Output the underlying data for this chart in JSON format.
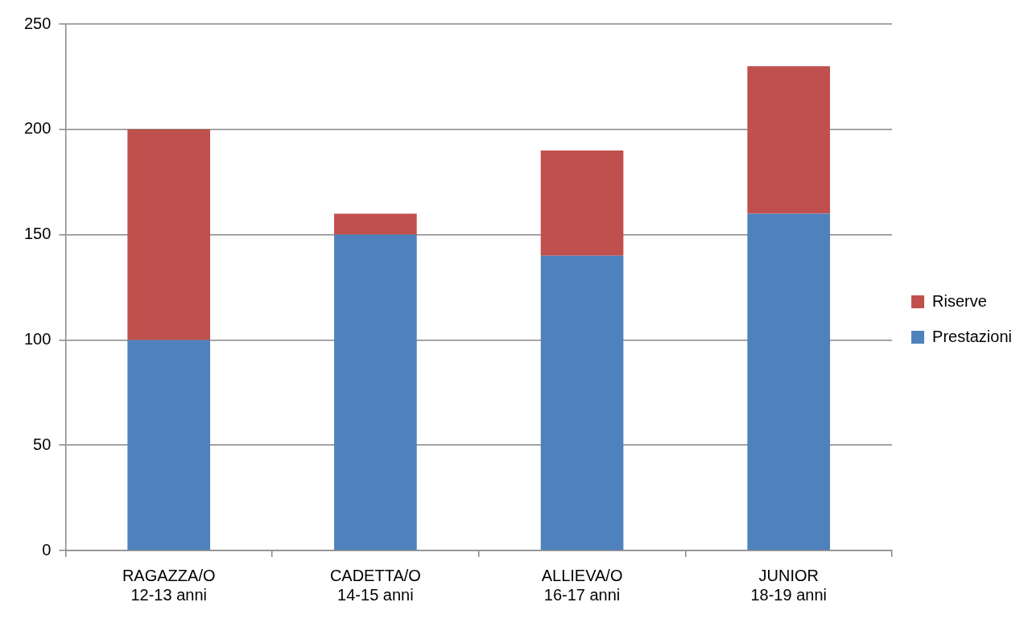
{
  "chart_data": {
    "type": "bar",
    "stacked": true,
    "categories": [
      "RAGAZZA/O\n12-13 anni",
      "CADETTA/O\n14-15 anni",
      "ALLIEVA/O\n16-17 anni",
      "JUNIOR\n18-19 anni"
    ],
    "series": [
      {
        "name": "Prestazioni",
        "color": "#4f81bd",
        "values": [
          100,
          150,
          140,
          160
        ]
      },
      {
        "name": "Riserve",
        "color": "#c0504d",
        "values": [
          100,
          10,
          50,
          70
        ]
      }
    ],
    "ylim": [
      0,
      250
    ],
    "yticks": [
      0,
      50,
      100,
      150,
      200,
      250
    ],
    "grid": "y",
    "legend": "right"
  }
}
